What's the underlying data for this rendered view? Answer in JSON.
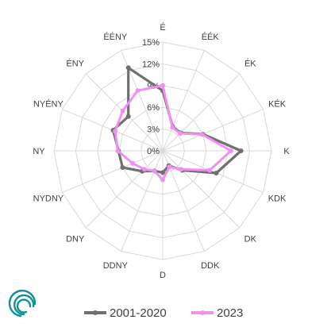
{
  "chart_data": {
    "type": "radar",
    "directions": [
      "É",
      "ÉÉK",
      "ÉK",
      "KÉK",
      "K",
      "KDK",
      "DK",
      "DDK",
      "D",
      "DDNY",
      "DNY",
      "NYDNY",
      "NY",
      "NYÉNY",
      "ÉNY",
      "ÉÉNY"
    ],
    "tick_labels": [
      "0%",
      "3%",
      "6%",
      "9%",
      "12%",
      "15%"
    ],
    "rmax": 15,
    "series": [
      {
        "name": "2001-2020",
        "color": "#707070",
        "values": [
          8.3,
          3.6,
          3.5,
          6.0,
          10.8,
          8.0,
          3.8,
          2.2,
          3.0,
          3.0,
          4.0,
          6.0,
          6.1,
          7.4,
          6.7,
          12.4
        ]
      },
      {
        "name": "2023",
        "color": "#f090f0",
        "values": [
          9.0,
          3.5,
          3.4,
          5.9,
          9.4,
          7.0,
          3.6,
          2.4,
          4.0,
          3.0,
          3.6,
          4.5,
          6.2,
          7.1,
          7.8,
          9.0
        ]
      }
    ],
    "grid": true,
    "legend_position": "bottom"
  },
  "logo": {
    "name": "swirl-logo",
    "color": "#0f8f9a"
  }
}
